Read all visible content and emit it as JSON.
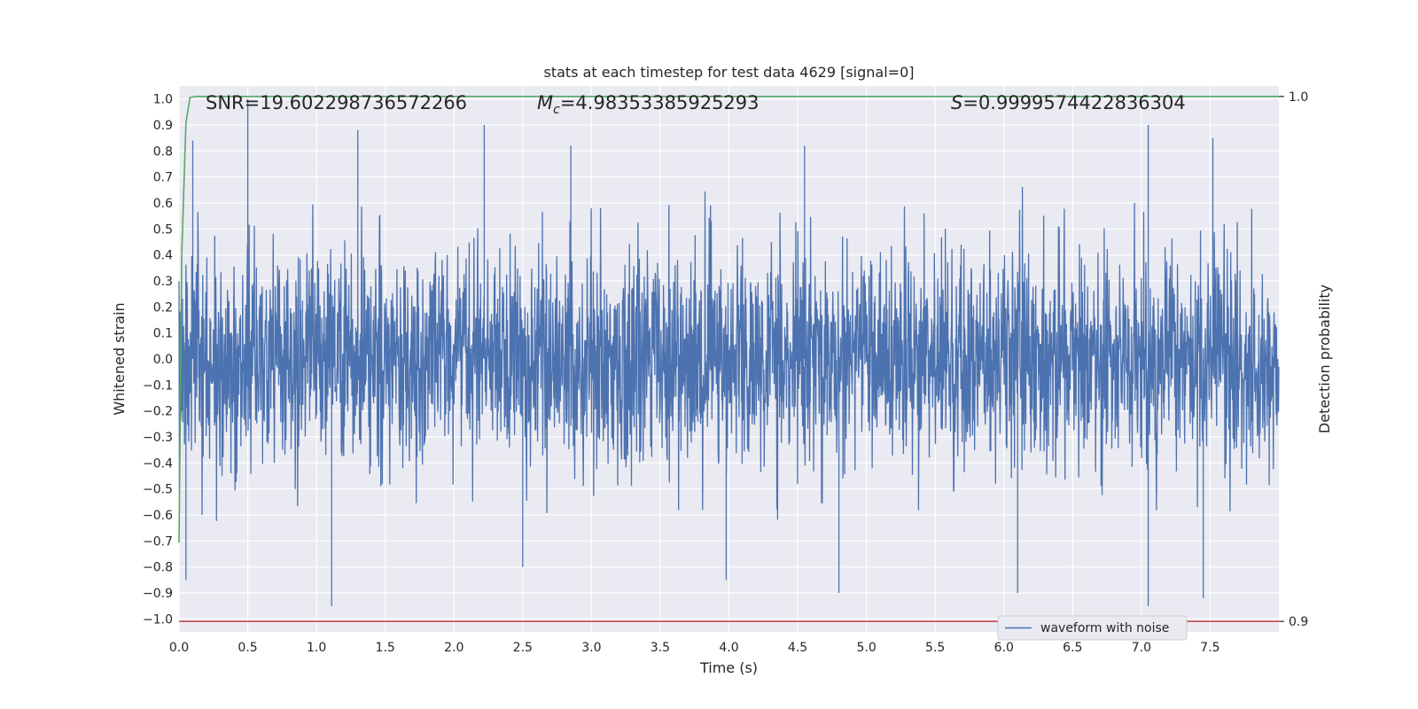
{
  "chart_data": {
    "type": "line",
    "title": "stats at each timestep for test data 4629 [signal=0]",
    "xlabel": "Time (s)",
    "ylabel": "Whitened strain",
    "ylabel_right": "Detection probability",
    "xlim": [
      0.0,
      8.0
    ],
    "ylim": [
      -1.05,
      1.05
    ],
    "ylim_right": [
      0.898,
      1.002
    ],
    "x_ticks": [
      0.0,
      0.5,
      1.0,
      1.5,
      2.0,
      2.5,
      3.0,
      3.5,
      4.0,
      4.5,
      5.0,
      5.5,
      6.0,
      6.5,
      7.0,
      7.5
    ],
    "x_tick_labels": [
      "0.0",
      "0.5",
      "1.0",
      "1.5",
      "2.0",
      "2.5",
      "3.0",
      "3.5",
      "4.0",
      "4.5",
      "5.0",
      "5.5",
      "6.0",
      "6.5",
      "7.0",
      "7.5"
    ],
    "y_ticks": [
      1.0,
      0.9,
      0.8,
      0.7,
      0.6,
      0.5,
      0.4,
      0.3,
      0.2,
      0.1,
      0.0,
      -0.1,
      -0.2,
      -0.3,
      -0.4,
      -0.5,
      -0.6,
      -0.7,
      -0.8,
      -0.9,
      -1.0
    ],
    "y_tick_labels": [
      "1.0",
      "0.9",
      "0.8",
      "0.7",
      "0.6",
      "0.5",
      "0.4",
      "0.3",
      "0.2",
      "0.1",
      "0.0",
      "−0.1",
      "−0.2",
      "−0.3",
      "−0.4",
      "−0.5",
      "−0.6",
      "−0.7",
      "−0.8",
      "−0.9",
      "−1.0"
    ],
    "y_ticks_right": [
      1.0,
      0.9
    ],
    "y_tick_labels_right": [
      "1.0",
      "0.9"
    ],
    "grid": true,
    "legend_position": "lower-right",
    "annotations": {
      "snr": "SNR=19.602298736572266",
      "mc_symbol": "M",
      "mc_sub": "c",
      "mc_value": "=4.98353385925293",
      "s_symbol": "S",
      "s_value": "=0.9999574422836304"
    },
    "series": [
      {
        "name": "waveform with noise",
        "color": "#4c72b0",
        "axis": "left",
        "style": "noise",
        "x_range": [
          0.0,
          8.0
        ],
        "band_amplitude": 0.3,
        "max_amplitude": 1.0,
        "peaks": [
          [
            0.5,
            1.0
          ],
          [
            2.22,
            0.9
          ],
          [
            7.05,
            0.9
          ],
          [
            7.52,
            0.85
          ],
          [
            0.1,
            0.84
          ],
          [
            1.3,
            0.88
          ],
          [
            2.85,
            0.82
          ],
          [
            4.55,
            0.82
          ],
          [
            1.11,
            -0.95
          ],
          [
            7.05,
            -0.95
          ],
          [
            0.05,
            -0.85
          ],
          [
            4.8,
            -0.9
          ],
          [
            6.1,
            -0.9
          ],
          [
            7.45,
            -0.92
          ],
          [
            2.5,
            -0.8
          ],
          [
            3.98,
            -0.85
          ]
        ]
      },
      {
        "name": "",
        "color": "#55a868",
        "axis": "right",
        "x": [
          0.0,
          0.02,
          0.05,
          0.08,
          0.12,
          0.2,
          1.0,
          8.0
        ],
        "y": [
          0.915,
          0.97,
          0.995,
          0.9998,
          1.0,
          1.0,
          1.0,
          1.0
        ]
      },
      {
        "name": "",
        "color": "#c44e52",
        "axis": "right",
        "x": [
          0.0,
          8.0
        ],
        "y": [
          0.9,
          0.9
        ]
      }
    ]
  }
}
